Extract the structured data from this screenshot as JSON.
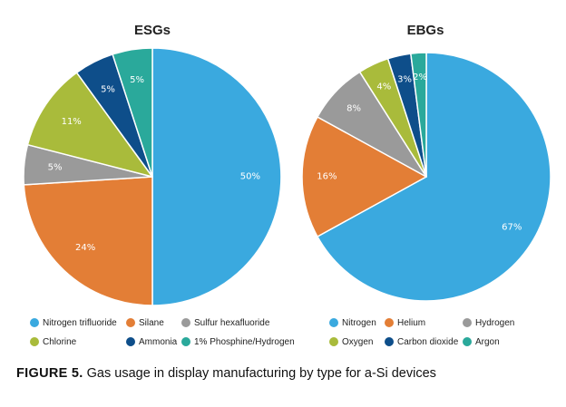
{
  "colors": {
    "Nitrogen trifluoride": "#3aa9df",
    "Silane": "#e37e36",
    "Sulfur hexafluoride": "#9a9a9a",
    "Chlorine": "#a9bb3b",
    "Ammonia": "#0e4e8a",
    "1% Phosphine/Hydrogen": "#2aa99b",
    "Nitrogen": "#3aa9df",
    "Helium": "#e37e36",
    "Hydrogen": "#9a9a9a",
    "Oxygen": "#a9bb3b",
    "Carbon dioxide": "#0e4e8a",
    "Argon": "#2aa99b"
  },
  "chart_data": [
    {
      "type": "pie",
      "title": "ESGs",
      "slices": [
        {
          "label": "Nitrogen trifluoride",
          "value": 50,
          "display": "50%"
        },
        {
          "label": "Silane",
          "value": 24,
          "display": "24%"
        },
        {
          "label": "Sulfur hexafluoride",
          "value": 5,
          "display": "5%"
        },
        {
          "label": "Chlorine",
          "value": 11,
          "display": "11%"
        },
        {
          "label": "Ammonia",
          "value": 5,
          "display": "5%"
        },
        {
          "label": "1% Phosphine/Hydrogen",
          "value": 5,
          "display": "5%"
        }
      ],
      "legend": [
        [
          "Nitrogen trifluoride",
          "Silane",
          "Sulfur hexafluoride"
        ],
        [
          "Chlorine",
          "Ammonia",
          "1% Phosphine/Hydrogen"
        ]
      ]
    },
    {
      "type": "pie",
      "title": "EBGs",
      "slices": [
        {
          "label": "Nitrogen",
          "value": 67,
          "display": "67%"
        },
        {
          "label": "Helium",
          "value": 16,
          "display": "16%"
        },
        {
          "label": "Hydrogen",
          "value": 8,
          "display": "8%"
        },
        {
          "label": "Oxygen",
          "value": 4,
          "display": "4%"
        },
        {
          "label": "Carbon dioxide",
          "value": 3,
          "display": "3%"
        },
        {
          "label": "Argon",
          "value": 2,
          "display": "2%"
        }
      ],
      "legend": [
        [
          "Nitrogen",
          "Helium",
          "Hydrogen"
        ],
        [
          "Oxygen",
          "Carbon dioxide",
          "Argon"
        ]
      ]
    }
  ],
  "caption": {
    "label": "FIGURE 5.",
    "text": " Gas usage in display manufacturing by type for a-Si devices"
  }
}
